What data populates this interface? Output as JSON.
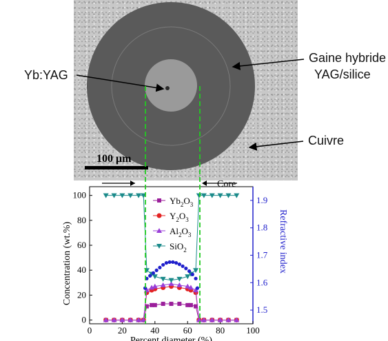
{
  "micrograph": {
    "scale_bar_label": "100 μm"
  },
  "annotations": {
    "core_material": "Yb:YAG",
    "cladding_line1": "Gaine hybride",
    "cladding_line2": "YAG/silice",
    "outer_material": "Cuivre",
    "core_marker": "Core"
  },
  "colors": {
    "Yb2O3": "#9b1f9b",
    "Y2O3": "#e32222",
    "Al2O3": "#9a3fd8",
    "SiO2": "#1a8a8a",
    "refractive_index": "#2020cc",
    "guide_lines": "#22cc22"
  },
  "chart_data": {
    "type": "line",
    "xlabel": "Percent diameter (%)",
    "ylabel": "Concentration (wt.%)",
    "y2label": "Refractive index",
    "xlim": [
      0,
      100
    ],
    "ylim": [
      -3,
      107
    ],
    "y2lim": [
      1.45,
      1.95
    ],
    "x_ticks": [
      0,
      20,
      40,
      60,
      80,
      100
    ],
    "y_ticks": [
      0,
      20,
      40,
      60,
      80,
      100
    ],
    "y2_ticks": [
      1.5,
      1.6,
      1.7,
      1.8,
      1.9
    ],
    "legend_position": "top-center",
    "series": [
      {
        "name": "Yb2O3",
        "axis": "left",
        "marker": "square",
        "x": [
          10,
          15,
          20,
          25,
          30,
          33,
          35,
          38,
          40,
          45,
          50,
          55,
          60,
          62,
          65,
          67,
          70,
          75,
          80,
          85,
          90
        ],
        "y": [
          0,
          0,
          0,
          0,
          0,
          0,
          11,
          12,
          12,
          13,
          13,
          13,
          12,
          12,
          11,
          0,
          0,
          0,
          0,
          0,
          0
        ]
      },
      {
        "name": "Y2O3",
        "axis": "left",
        "marker": "circle",
        "x": [
          10,
          15,
          20,
          25,
          30,
          33,
          35,
          38,
          40,
          45,
          50,
          55,
          60,
          62,
          65,
          67,
          70,
          75,
          80,
          85,
          90
        ],
        "y": [
          0,
          0,
          0,
          0,
          0,
          0,
          22,
          24,
          25,
          26,
          27,
          26,
          25,
          24,
          22,
          0,
          0,
          0,
          0,
          0,
          0
        ]
      },
      {
        "name": "Al2O3",
        "axis": "left",
        "marker": "triangle-up",
        "x": [
          10,
          15,
          20,
          25,
          30,
          33,
          35,
          38,
          40,
          45,
          50,
          55,
          60,
          62,
          65,
          67,
          70,
          75,
          80,
          85,
          90
        ],
        "y": [
          0,
          0,
          0,
          0,
          0,
          0,
          24,
          26,
          27,
          28,
          29,
          28,
          27,
          26,
          24,
          0,
          0,
          0,
          0,
          0,
          0
        ]
      },
      {
        "name": "SiO2",
        "axis": "left",
        "marker": "triangle-down",
        "x": [
          10,
          15,
          20,
          25,
          30,
          33,
          35,
          38,
          40,
          45,
          50,
          55,
          60,
          62,
          65,
          67,
          70,
          75,
          80,
          85,
          90
        ],
        "y": [
          100,
          100,
          100,
          100,
          100,
          100,
          40,
          37,
          35,
          33,
          32,
          33,
          35,
          37,
          40,
          100,
          100,
          100,
          100,
          100,
          100
        ]
      },
      {
        "name": "Refractive index",
        "axis": "right",
        "marker": "dot",
        "x": [
          34,
          35,
          37,
          39,
          41,
          43,
          45,
          47,
          49,
          51,
          53,
          55,
          57,
          59,
          61,
          63,
          65,
          66
        ],
        "y": [
          1.58,
          1.615,
          1.625,
          1.635,
          1.645,
          1.655,
          1.665,
          1.672,
          1.675,
          1.675,
          1.672,
          1.667,
          1.66,
          1.652,
          1.642,
          1.63,
          1.615,
          1.58
        ]
      }
    ]
  }
}
